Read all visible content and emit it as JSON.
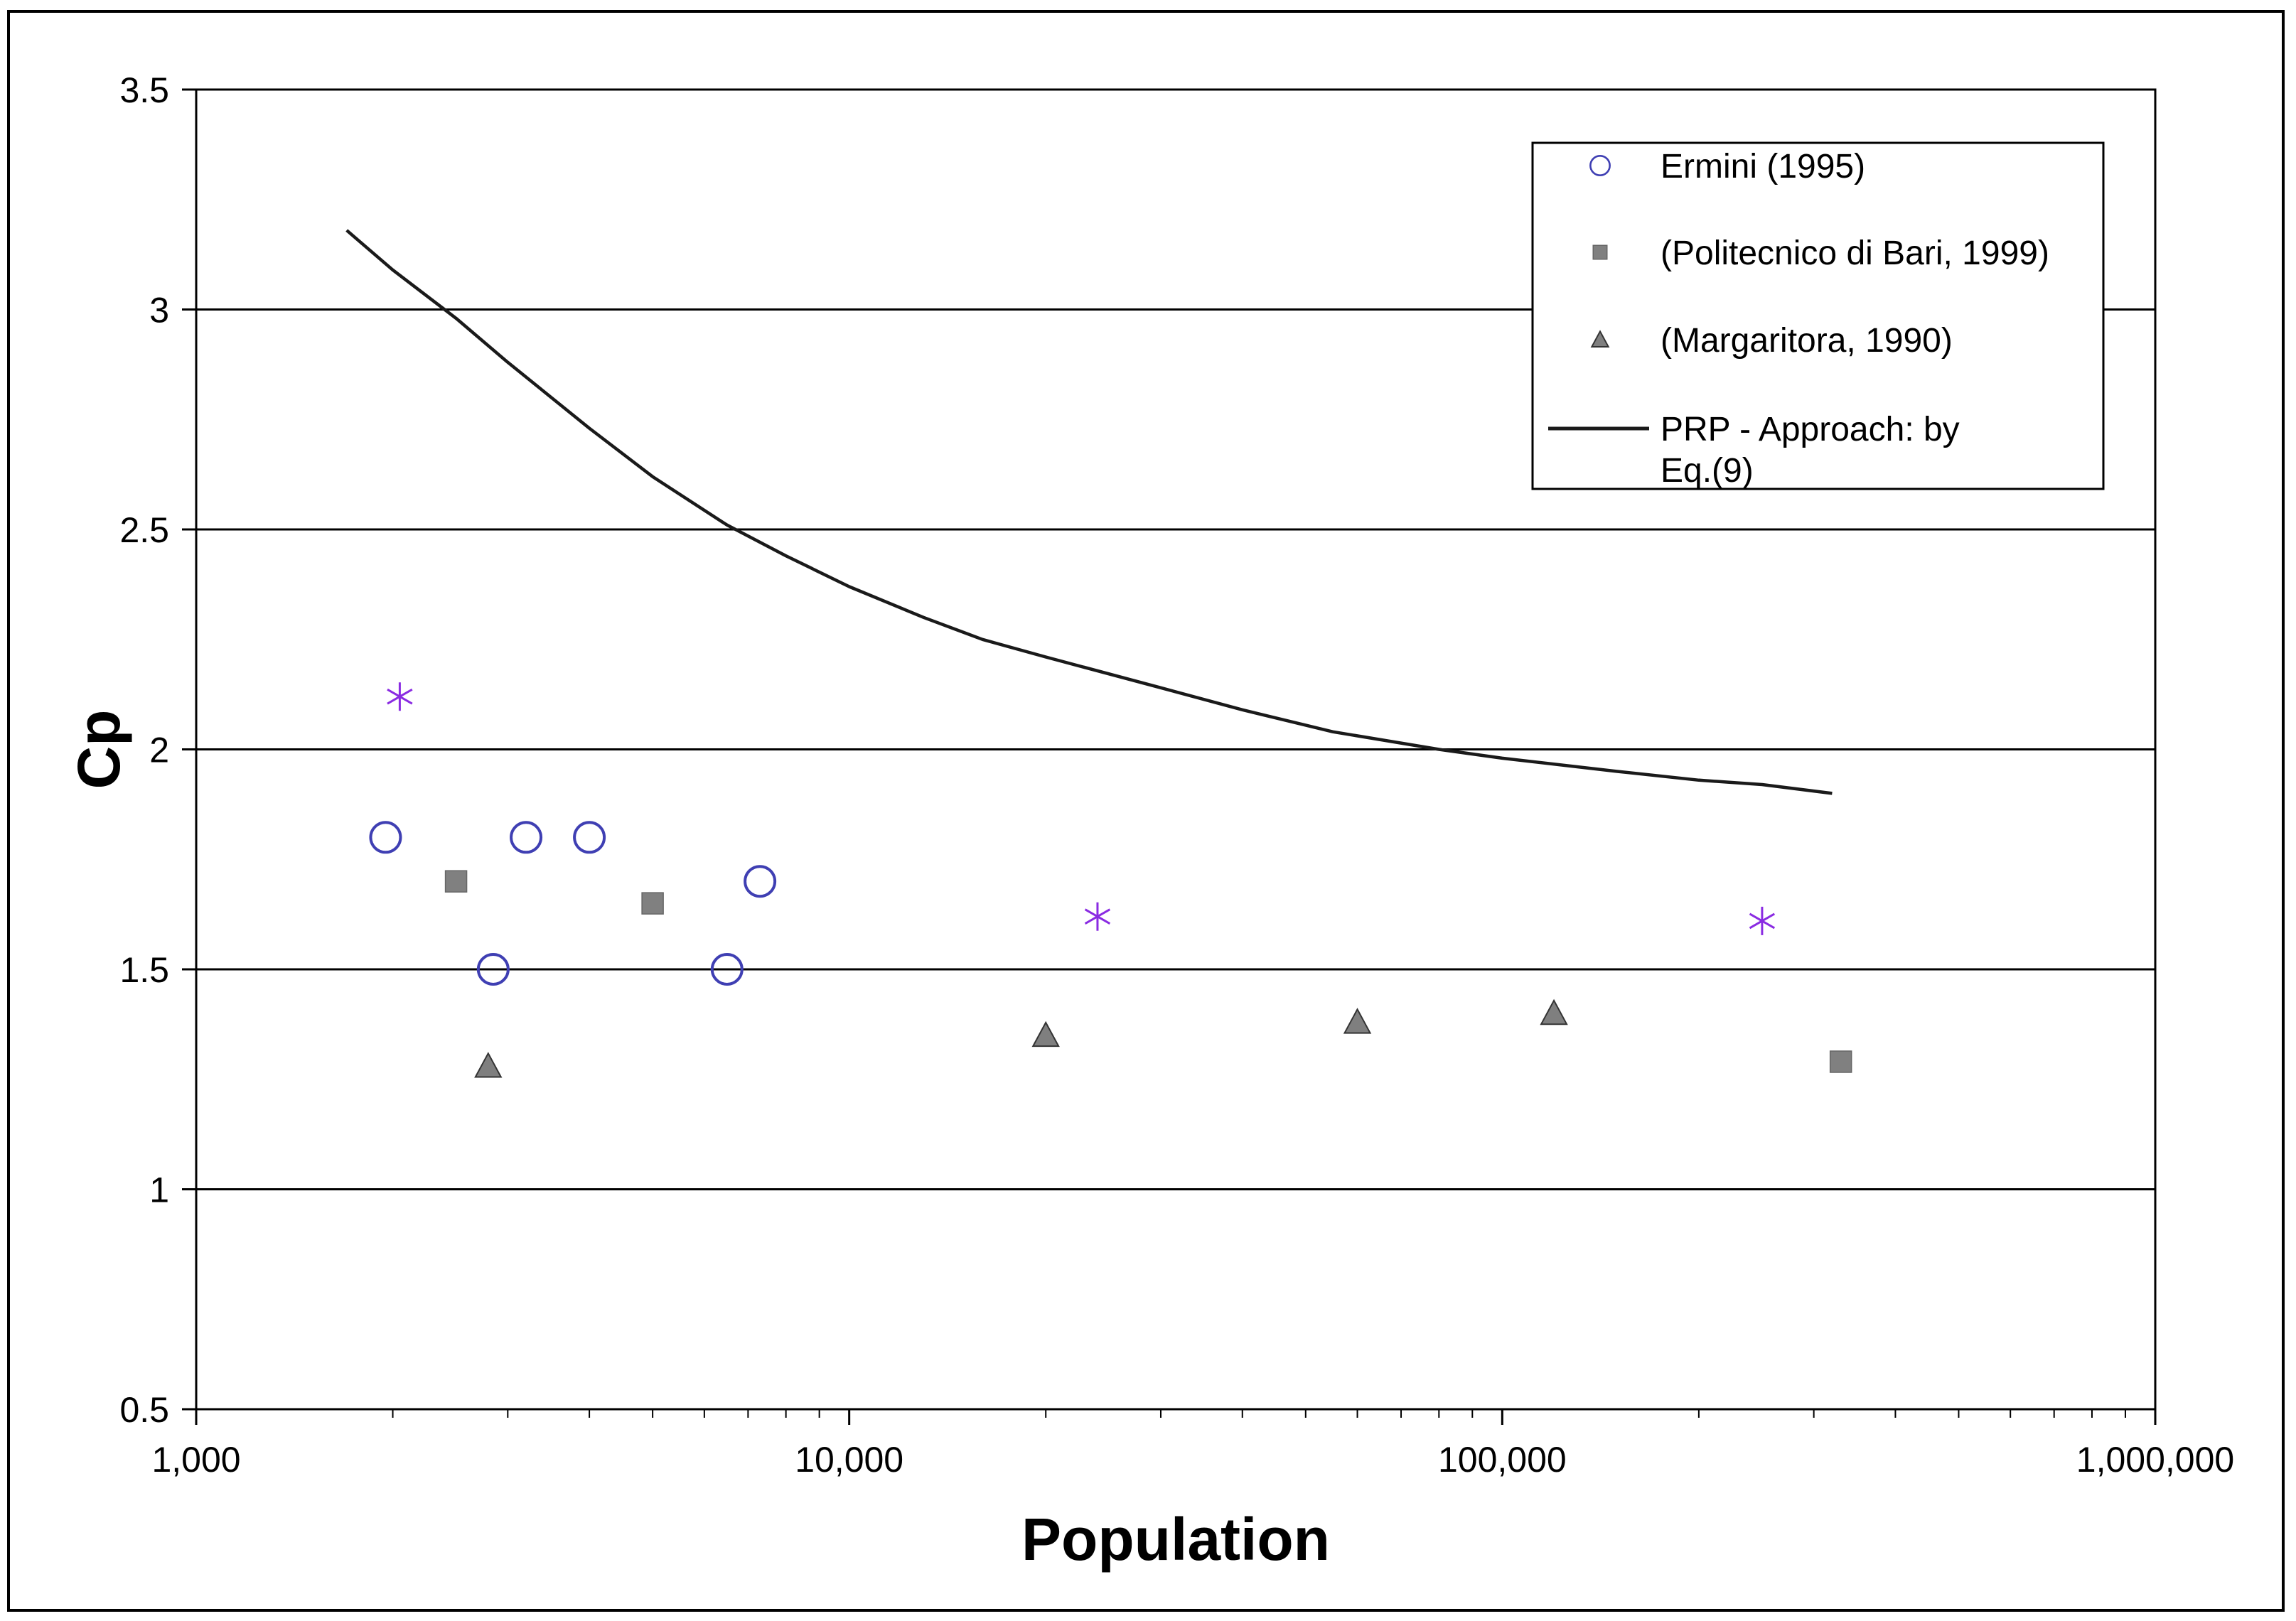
{
  "chart_data": {
    "type": "scatter",
    "title": "",
    "xlabel": "Population",
    "ylabel": "Cp",
    "xscale": "log",
    "xlim": [
      1000,
      1000000
    ],
    "ylim": [
      0.5,
      3.5
    ],
    "x_tick_values": [
      1000,
      10000,
      100000,
      1000000
    ],
    "x_tick_labels": [
      "1,000",
      "10,000",
      "100,000",
      "1,000,000"
    ],
    "y_tick_values": [
      0.5,
      1,
      1.5,
      2,
      2.5,
      3,
      3.5
    ],
    "y_tick_labels": [
      "0.5",
      "1",
      "1.5",
      "2",
      "2.5",
      "3",
      "3.5"
    ],
    "grid": "horizontal",
    "legend_position": "top-right",
    "series": [
      {
        "name": "Ermini (1995)",
        "marker": "circle",
        "color": "#3f3fb3",
        "points": [
          [
            1950,
            1.8
          ],
          [
            2850,
            1.5
          ],
          [
            3200,
            1.8
          ],
          [
            4000,
            1.8
          ],
          [
            6500,
            1.5
          ],
          [
            7300,
            1.7
          ]
        ]
      },
      {
        "name": "(Politecnico di Bari, 1999)",
        "marker": "square",
        "color": "#808080",
        "points": [
          [
            2500,
            1.7
          ],
          [
            5000,
            1.65
          ],
          [
            330000,
            1.29
          ]
        ]
      },
      {
        "name": "(Margaritora, 1990)",
        "marker": "triangle",
        "color": "#7f7f7f",
        "points": [
          [
            2800,
            1.28
          ],
          [
            20000,
            1.35
          ],
          [
            60000,
            1.38
          ],
          [
            120000,
            1.4
          ]
        ]
      },
      {
        "name": "PRP - Approach: by Eq.(9)",
        "marker": "line",
        "color": "#1a1a1a",
        "legend_lines": [
          "PRP - Approach: by",
          "Eq.(9)"
        ],
        "points": [
          [
            1700,
            3.18
          ],
          [
            2000,
            3.09
          ],
          [
            2500,
            2.98
          ],
          [
            3000,
            2.88
          ],
          [
            4000,
            2.73
          ],
          [
            5000,
            2.62
          ],
          [
            6500,
            2.51
          ],
          [
            8000,
            2.44
          ],
          [
            10000,
            2.37
          ],
          [
            13000,
            2.3
          ],
          [
            16000,
            2.25
          ],
          [
            20000,
            2.21
          ],
          [
            30000,
            2.14
          ],
          [
            40000,
            2.09
          ],
          [
            55000,
            2.04
          ],
          [
            80000,
            2.0
          ],
          [
            100000,
            1.98
          ],
          [
            150000,
            1.95
          ],
          [
            200000,
            1.93
          ],
          [
            250000,
            1.92
          ],
          [
            320000,
            1.9
          ]
        ]
      },
      {
        "name": "",
        "marker": "asterisk",
        "color": "#8a2be2",
        "points": [
          [
            2050,
            2.12
          ],
          [
            24000,
            1.62
          ],
          [
            250000,
            1.61
          ]
        ]
      }
    ]
  }
}
